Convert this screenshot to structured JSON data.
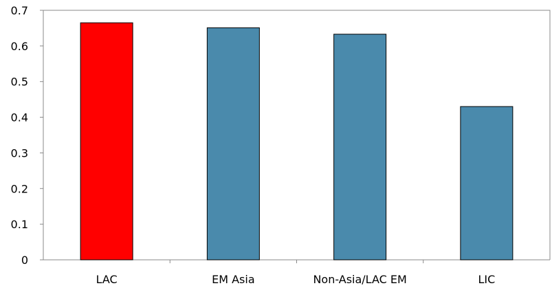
{
  "chart_data": {
    "type": "bar",
    "categories": [
      "LAC",
      "EM Asia",
      "Non-Asia/LAC EM",
      "LIC"
    ],
    "values": [
      0.665,
      0.651,
      0.633,
      0.43
    ],
    "bar_colors": [
      "#ff0000",
      "#4a8aac",
      "#4a8aac",
      "#4a8aac"
    ],
    "y_ticks": [
      "0",
      "0.1",
      "0.2",
      "0.3",
      "0.4",
      "0.5",
      "0.6",
      "0.7"
    ],
    "ylim": [
      0,
      0.7
    ],
    "grid": false,
    "legend": "none",
    "title": "",
    "xlabel": "",
    "ylabel": ""
  }
}
